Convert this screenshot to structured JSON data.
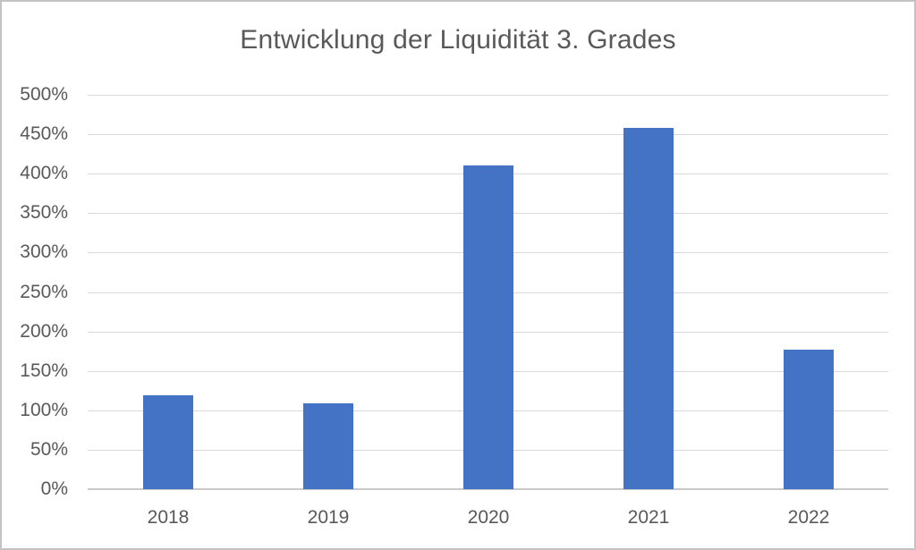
{
  "chart_data": {
    "type": "bar",
    "title": "Entwicklung der Liquidität 3. Grades",
    "categories": [
      "2018",
      "2019",
      "2020",
      "2021",
      "2022"
    ],
    "values": [
      119,
      109,
      410,
      458,
      177
    ],
    "unit": "%",
    "xlabel": "",
    "ylabel": "",
    "ylim": [
      0,
      500
    ],
    "ytick_step": 50,
    "ytick_labels": [
      "0%",
      "50%",
      "100%",
      "150%",
      "200%",
      "250%",
      "300%",
      "350%",
      "400%",
      "450%",
      "500%"
    ],
    "grid": true,
    "legend_position": "none",
    "colors": {
      "bar": "#4472C4",
      "gridline": "#d9d9d9",
      "axis_line": "#c9c9c9",
      "text": "#595959"
    }
  }
}
